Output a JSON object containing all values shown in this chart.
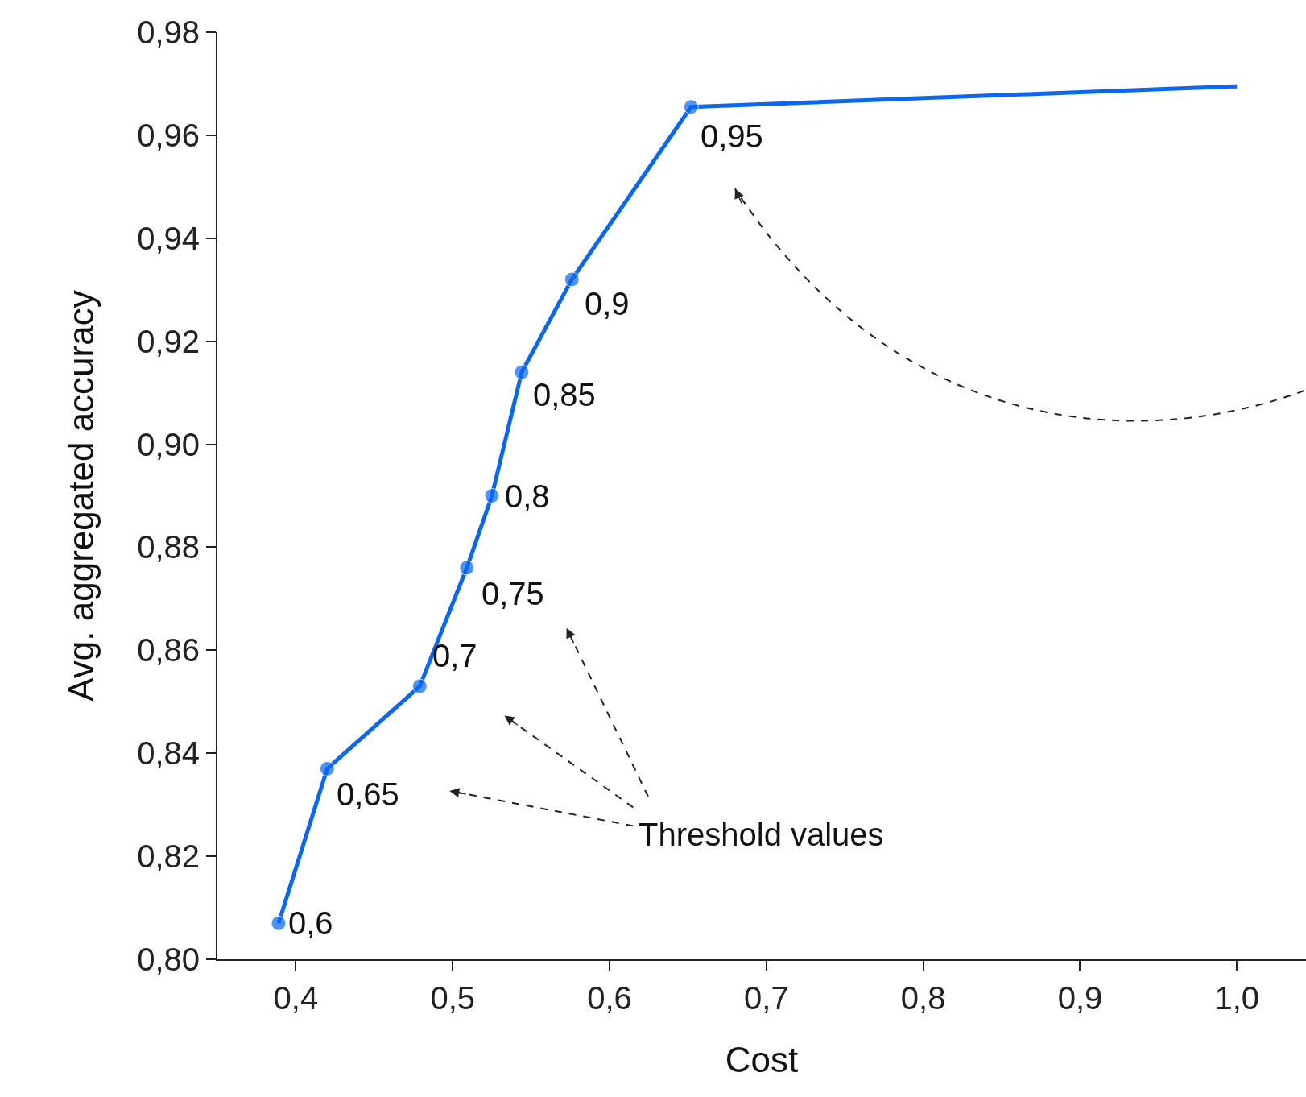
{
  "chart_data": {
    "type": "line",
    "xlabel": "Cost",
    "ylabel": "Avg. aggregated accuracy",
    "x": [
      0.389,
      0.42,
      0.479,
      0.509,
      0.525,
      0.544,
      0.576,
      0.652,
      1.0
    ],
    "series": [
      {
        "color": "#0a66f5",
        "values": [
          0.807,
          0.837,
          0.853,
          0.876,
          0.89,
          0.914,
          0.932,
          0.9655,
          0.9695
        ],
        "marker": [
          true,
          true,
          true,
          true,
          true,
          true,
          true,
          true,
          false
        ]
      }
    ],
    "marker": "circle",
    "line_style": "solid",
    "xlim": [
      0.35,
      1.044
    ],
    "ylim": [
      0.8,
      0.98
    ],
    "xticks": [
      {
        "value": 0.4,
        "label": "0,4"
      },
      {
        "value": 0.5,
        "label": "0,5"
      },
      {
        "value": 0.6,
        "label": "0,6"
      },
      {
        "value": 0.7,
        "label": "0,7"
      },
      {
        "value": 0.8,
        "label": "0,8"
      },
      {
        "value": 0.9,
        "label": "0,9"
      },
      {
        "value": 1.0,
        "label": "1,0"
      }
    ],
    "yticks": [
      {
        "value": 0.8,
        "label": "0,80"
      },
      {
        "value": 0.82,
        "label": "0,82"
      },
      {
        "value": 0.84,
        "label": "0,84"
      },
      {
        "value": 0.86,
        "label": "0,86"
      },
      {
        "value": 0.88,
        "label": "0,88"
      },
      {
        "value": 0.9,
        "label": "0,90"
      },
      {
        "value": 0.92,
        "label": "0,92"
      },
      {
        "value": 0.94,
        "label": "0,94"
      },
      {
        "value": 0.96,
        "label": "0,96"
      },
      {
        "value": 0.98,
        "label": "0,98"
      }
    ],
    "annotations": [
      {
        "text": "0,6",
        "x": 0.389,
        "y": 0.807
      },
      {
        "text": "0,65",
        "x": 0.42,
        "y": 0.837
      },
      {
        "text": "0,7",
        "x": 0.479,
        "y": 0.853
      },
      {
        "text": "0,75",
        "x": 0.509,
        "y": 0.876
      },
      {
        "text": "0,8",
        "x": 0.525,
        "y": 0.89
      },
      {
        "text": "0,85",
        "x": 0.544,
        "y": 0.914
      },
      {
        "text": "0,9",
        "x": 0.576,
        "y": 0.932
      },
      {
        "text": "0,95",
        "x": 0.652,
        "y": 0.9655
      },
      "Threshold values"
    ]
  }
}
